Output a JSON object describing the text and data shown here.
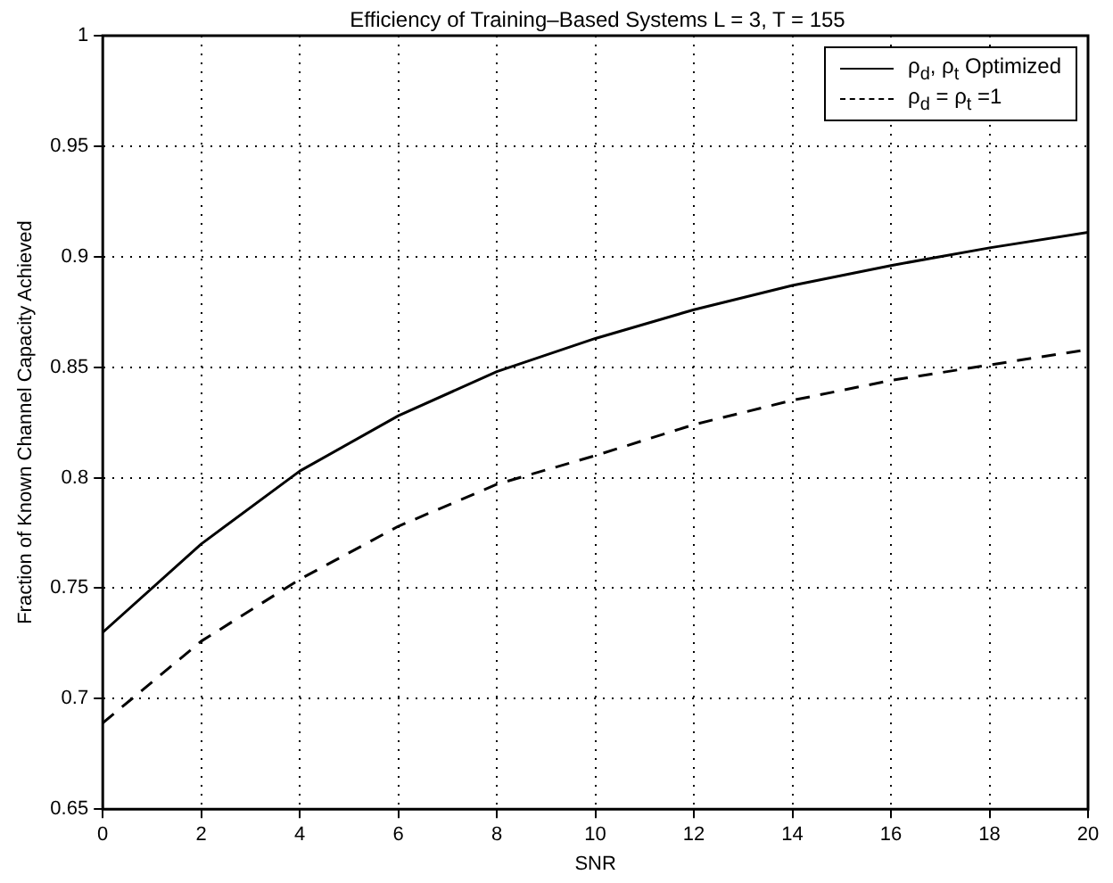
{
  "chart_data": {
    "type": "line",
    "title": "Efficiency of Training–Based Systems L = 3, T = 155",
    "xlabel": "SNR",
    "ylabel": "Fraction of Known Channel Capacity Achieved",
    "x": [
      0,
      2,
      4,
      6,
      8,
      10,
      12,
      14,
      16,
      18,
      20
    ],
    "series": [
      {
        "name": "ρ$_{d}$, ρ$_{t}$ Optimized",
        "color": "#000000",
        "line_style": "solid",
        "values": [
          0.73,
          0.77,
          0.803,
          0.828,
          0.848,
          0.863,
          0.876,
          0.887,
          0.896,
          0.904,
          0.911
        ]
      },
      {
        "name": "ρ$_{d}$ = ρ$_{t}$ =1",
        "color": "#000000",
        "line_style": "dashed",
        "values": [
          0.689,
          0.726,
          0.754,
          0.778,
          0.797,
          0.81,
          0.824,
          0.835,
          0.844,
          0.851,
          0.858
        ]
      }
    ],
    "xlim": [
      0,
      20
    ],
    "xticks": [
      0,
      2,
      4,
      6,
      8,
      10,
      12,
      14,
      16,
      18,
      20
    ],
    "ylim": [
      0.65,
      1
    ],
    "yticks": [
      0.65,
      0.7,
      0.75,
      0.8,
      0.85,
      0.9,
      0.95,
      1
    ],
    "grid": true,
    "legend": "top right",
    "marker": "none"
  }
}
